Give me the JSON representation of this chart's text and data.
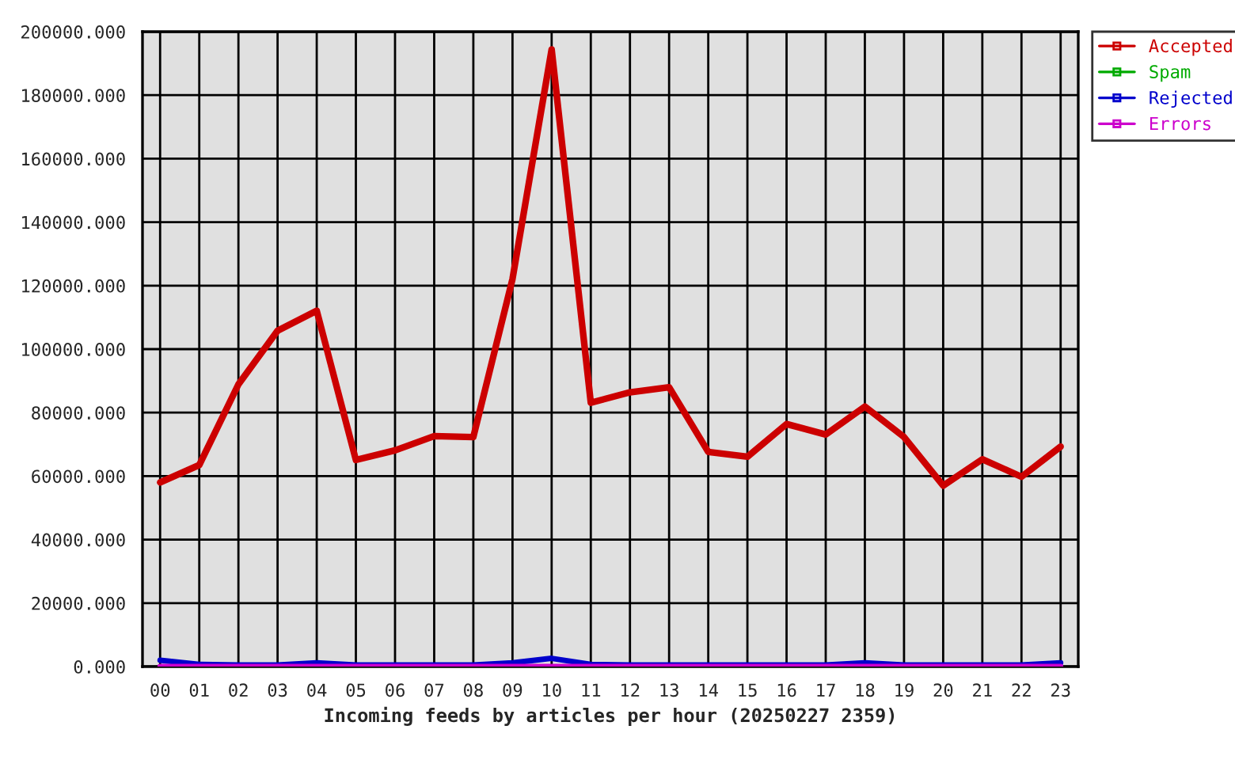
{
  "chart_data": {
    "type": "line",
    "xlabel": "Incoming feeds by articles per hour (20250227 2359)",
    "categories": [
      "00",
      "01",
      "02",
      "03",
      "04",
      "05",
      "06",
      "07",
      "08",
      "09",
      "10",
      "11",
      "12",
      "13",
      "14",
      "15",
      "16",
      "17",
      "18",
      "19",
      "20",
      "21",
      "22",
      "23"
    ],
    "series": [
      {
        "name": "Accepted",
        "color": "#cc0000",
        "values": [
          58000,
          63500,
          88900,
          105800,
          112100,
          65100,
          68100,
          72600,
          72300,
          122100,
          194400,
          83100,
          86400,
          88000,
          67600,
          66100,
          76400,
          73100,
          81900,
          72300,
          57000,
          65300,
          59800,
          69300
        ]
      },
      {
        "name": "Spam",
        "color": "#00aa00",
        "values": [
          null,
          null,
          null,
          null,
          null,
          null,
          null,
          null,
          null,
          null,
          null,
          null,
          null,
          null,
          null,
          null,
          null,
          null,
          null,
          null,
          null,
          null,
          null,
          null
        ]
      },
      {
        "name": "Rejected",
        "color": "#0000cc",
        "values": [
          2000,
          700,
          500,
          500,
          1200,
          500,
          500,
          500,
          500,
          1200,
          2600,
          700,
          500,
          500,
          500,
          500,
          500,
          500,
          1200,
          500,
          500,
          500,
          500,
          1200
        ]
      },
      {
        "name": "Errors",
        "color": "#cc00cc",
        "values": [
          0,
          0,
          0,
          0,
          0,
          0,
          0,
          0,
          0,
          0,
          0,
          0,
          0,
          0,
          0,
          0,
          0,
          0,
          0,
          0,
          0,
          0,
          0,
          0
        ]
      }
    ],
    "ylim": [
      0,
      200000
    ],
    "yticks": [
      {
        "value": 0,
        "label": "0.000"
      },
      {
        "value": 20000,
        "label": "20000.000"
      },
      {
        "value": 40000,
        "label": "40000.000"
      },
      {
        "value": 60000,
        "label": "60000.000"
      },
      {
        "value": 80000,
        "label": "80000.000"
      },
      {
        "value": 100000,
        "label": "100000.000"
      },
      {
        "value": 120000,
        "label": "120000.000"
      },
      {
        "value": 140000,
        "label": "140000.000"
      },
      {
        "value": 160000,
        "label": "160000.000"
      },
      {
        "value": 180000,
        "label": "180000.000"
      },
      {
        "value": 200000,
        "label": "200000.000"
      }
    ],
    "grid": true,
    "legend": "top right",
    "marker": "none",
    "line_style": "solid"
  }
}
